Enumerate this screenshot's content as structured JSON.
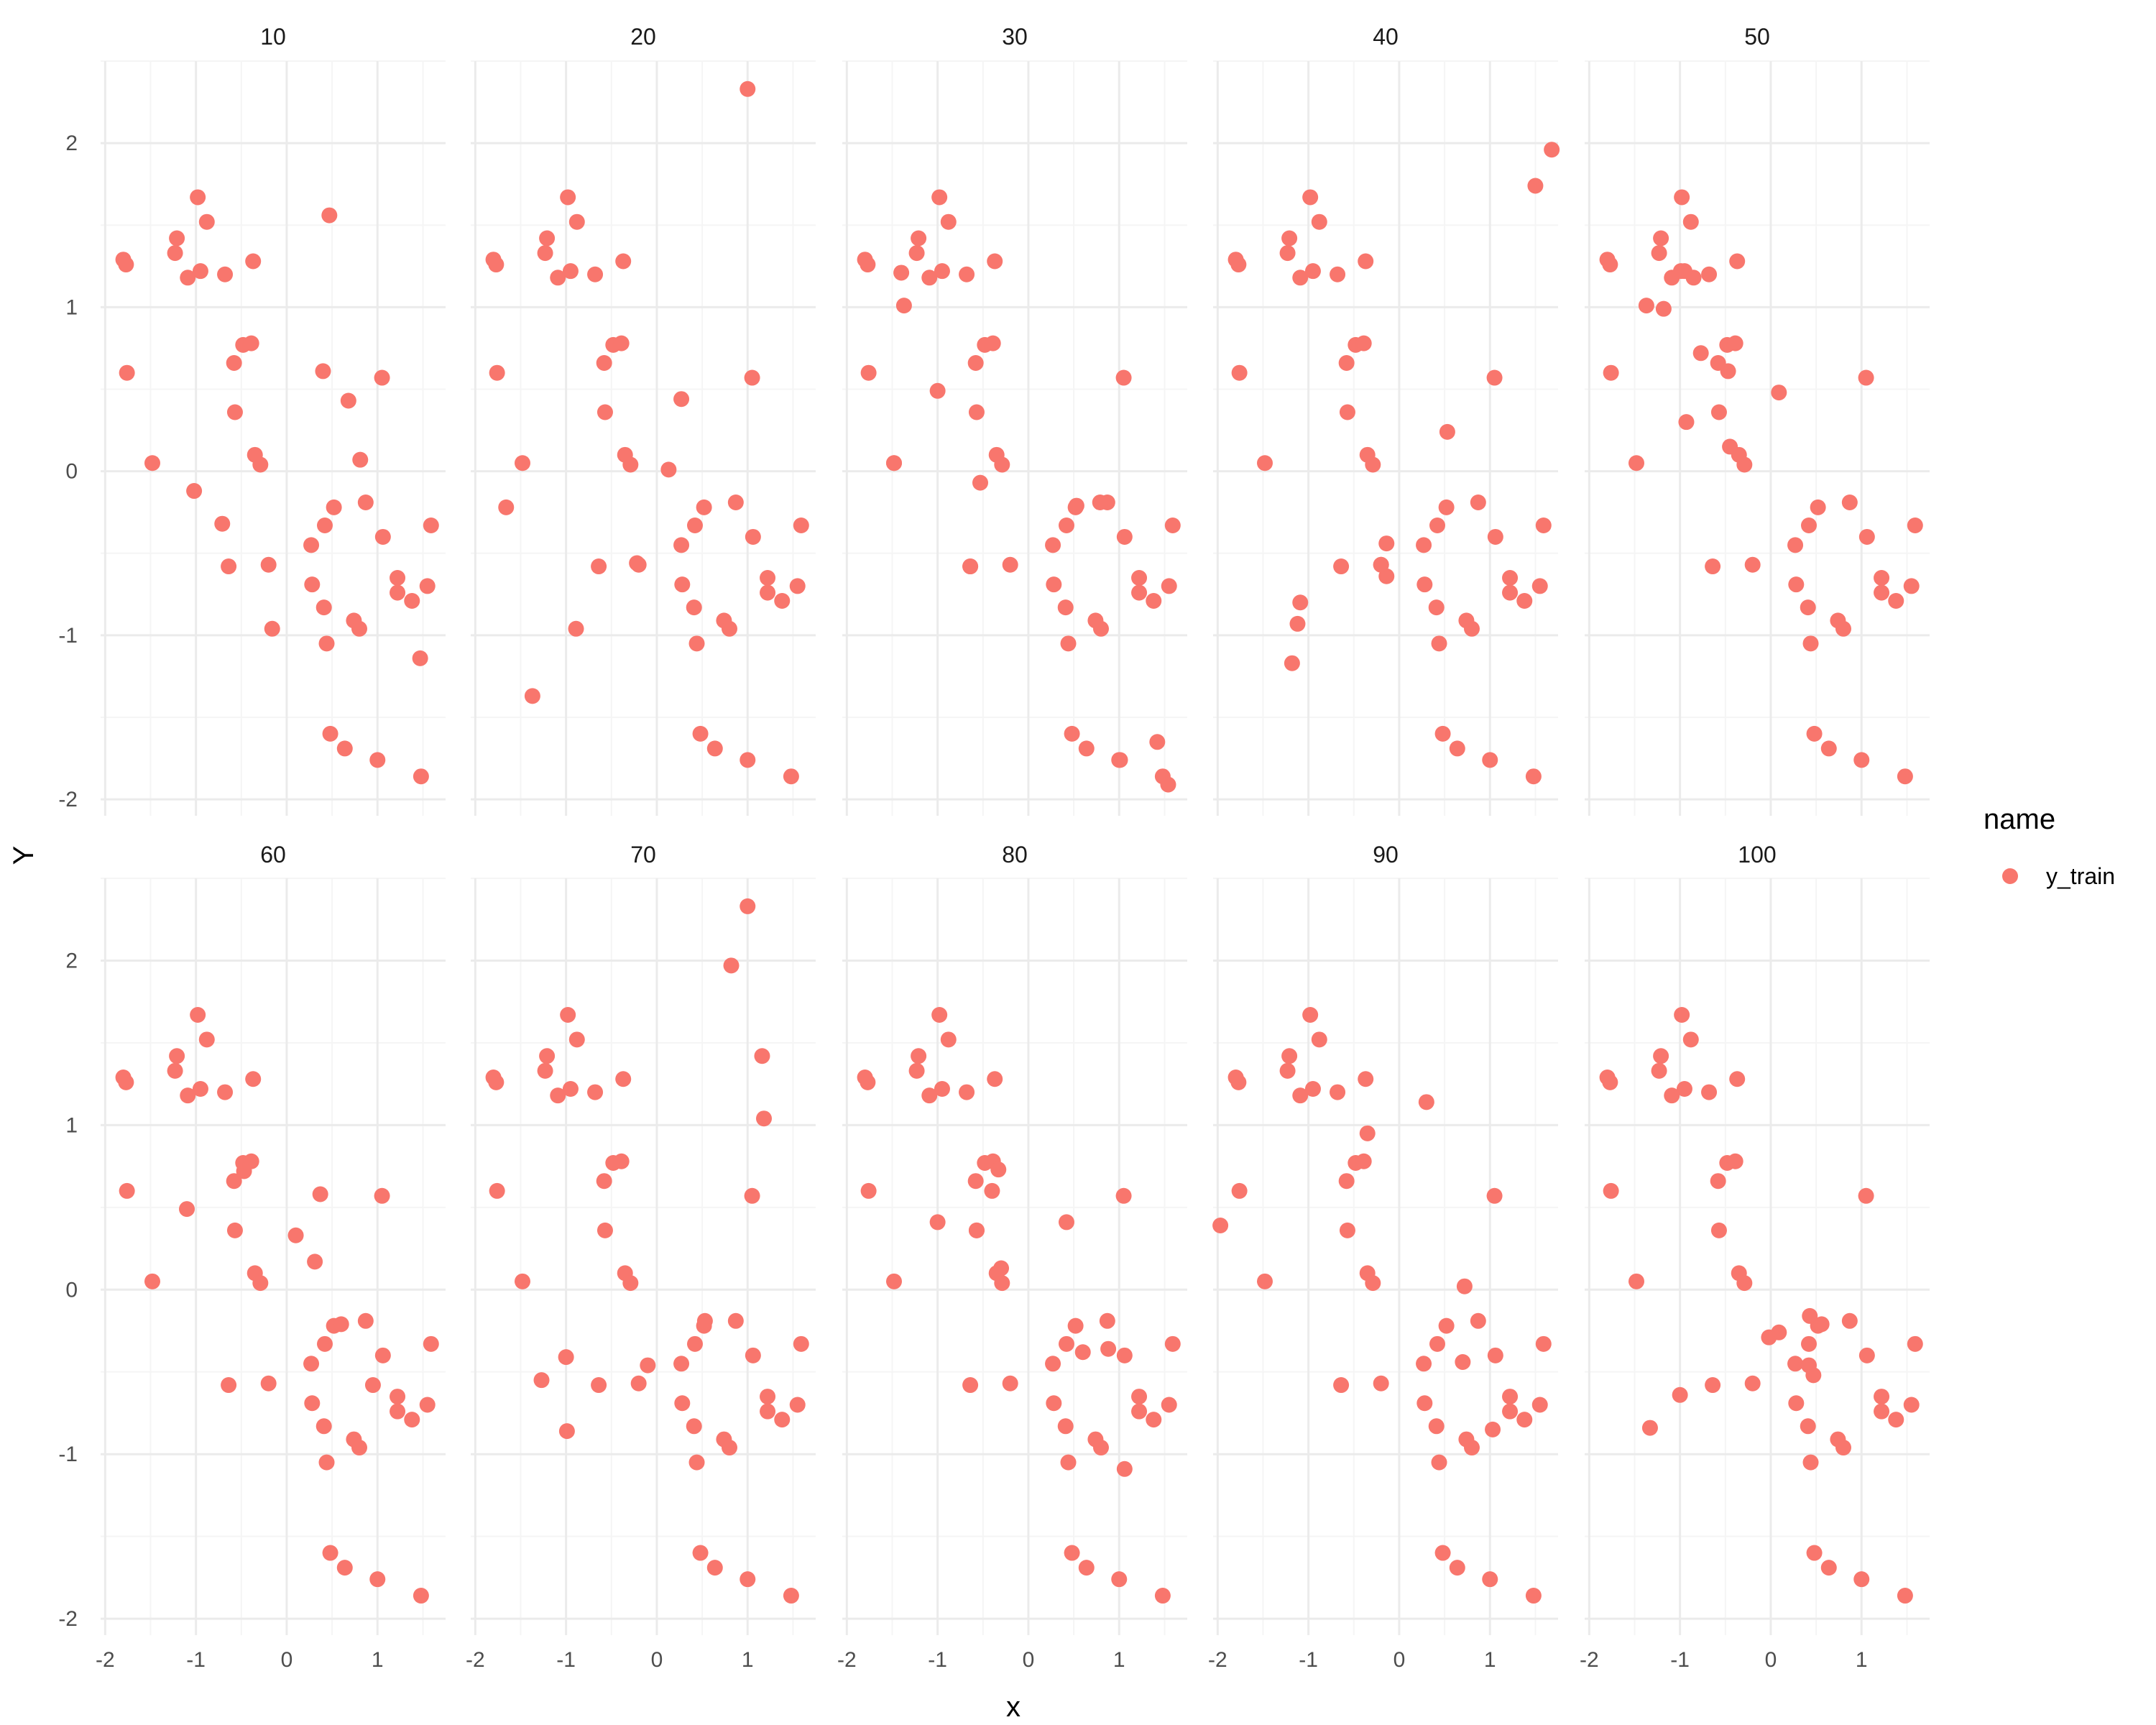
{
  "chart_data": {
    "type": "scatter",
    "xlabel": "x",
    "ylabel": "Y",
    "xlim": [
      -2.05,
      1.75
    ],
    "ylim": [
      -2.1,
      2.5
    ],
    "x_ticks": [
      -2,
      -1,
      0,
      1
    ],
    "y_ticks": [
      -2,
      -1,
      0,
      1,
      2
    ],
    "x_tick_labels": [
      "-2",
      "-1",
      "0",
      "1"
    ],
    "y_tick_labels": [
      "-2",
      "-1",
      "0",
      "1",
      "2"
    ],
    "grid": true,
    "legend": {
      "title": "name",
      "entries": [
        "y_train"
      ],
      "position": "right"
    },
    "colors": {
      "y_train": "#F8766D",
      "grid_major": "#EBEBEB",
      "grid_minor": "#F5F5F5"
    },
    "base_points": [
      [
        -1.8,
        1.29
      ],
      [
        -1.77,
        1.26
      ],
      [
        -1.76,
        0.6
      ],
      [
        -1.23,
        1.33
      ],
      [
        -1.21,
        1.42
      ],
      [
        -1.09,
        1.18
      ],
      [
        -0.98,
        1.67
      ],
      [
        -0.95,
        1.22
      ],
      [
        -0.88,
        1.52
      ],
      [
        -0.68,
        1.2
      ],
      [
        -0.37,
        1.28
      ],
      [
        -0.58,
        0.66
      ],
      [
        -0.48,
        0.77
      ],
      [
        -0.39,
        0.78
      ],
      [
        -0.57,
        0.36
      ],
      [
        -0.35,
        0.1
      ],
      [
        -0.29,
        0.04
      ],
      [
        -0.64,
        -0.58
      ],
      [
        -0.2,
        -0.57
      ],
      [
        0.27,
        -0.45
      ],
      [
        0.42,
        -0.33
      ],
      [
        0.52,
        -0.22
      ],
      [
        0.28,
        -0.69
      ],
      [
        0.41,
        -0.83
      ],
      [
        0.44,
        -1.05
      ],
      [
        0.87,
        -0.19
      ],
      [
        1.06,
        -0.4
      ],
      [
        1.22,
        -0.65
      ],
      [
        1.22,
        -0.74
      ],
      [
        1.38,
        -0.79
      ],
      [
        1.59,
        -0.33
      ],
      [
        1.55,
        -0.7
      ],
      [
        0.74,
        -0.91
      ],
      [
        0.8,
        -0.96
      ],
      [
        0.48,
        -1.6
      ],
      [
        0.64,
        -1.69
      ],
      [
        1.0,
        -1.76
      ],
      [
        1.48,
        -1.86
      ],
      [
        -1.48,
        0.05
      ],
      [
        1.05,
        0.57
      ]
    ],
    "panels": [
      {
        "label": "10",
        "extra": [
          [
            0.47,
            1.56
          ],
          [
            0.4,
            0.61
          ],
          [
            0.68,
            0.43
          ],
          [
            0.81,
            0.07
          ],
          [
            -1.02,
            -0.12
          ],
          [
            -0.16,
            -0.96
          ],
          [
            -0.71,
            -0.32
          ],
          [
            1.47,
            -1.14
          ]
        ]
      },
      {
        "label": "20",
        "extra": [
          [
            1.0,
            2.33
          ],
          [
            0.27,
            0.44
          ],
          [
            0.13,
            0.01
          ],
          [
            -0.22,
            -0.56
          ],
          [
            -1.37,
            -1.37
          ],
          [
            -1.66,
            -0.22
          ],
          [
            -0.89,
            -0.96
          ]
        ]
      },
      {
        "label": "30",
        "extra": [
          [
            -1.37,
            1.01
          ],
          [
            -0.53,
            -0.07
          ],
          [
            0.79,
            -0.19
          ],
          [
            0.53,
            -0.21
          ],
          [
            -1.0,
            0.49
          ],
          [
            -1.4,
            1.21
          ],
          [
            -0.64,
            -0.58
          ],
          [
            1.01,
            -1.76
          ],
          [
            1.54,
            -1.91
          ],
          [
            1.42,
            -1.65
          ],
          [
            -1.48,
            0.05
          ]
        ]
      },
      {
        "label": "40",
        "extra": [
          [
            1.5,
            1.74
          ],
          [
            1.68,
            1.96
          ],
          [
            -1.09,
            -0.8
          ],
          [
            -1.18,
            -1.17
          ],
          [
            -1.12,
            -0.93
          ],
          [
            0.53,
            0.24
          ],
          [
            -0.14,
            -0.44
          ],
          [
            -0.14,
            -0.64
          ],
          [
            -0.2,
            -0.57
          ]
        ]
      },
      {
        "label": "50",
        "extra": [
          [
            -1.37,
            1.01
          ],
          [
            -0.99,
            1.22
          ],
          [
            -1.18,
            0.99
          ],
          [
            -0.93,
            0.3
          ],
          [
            -0.77,
            0.72
          ],
          [
            -0.47,
            0.61
          ],
          [
            -0.45,
            0.15
          ],
          [
            0.09,
            0.48
          ],
          [
            -0.85,
            1.18
          ]
        ]
      },
      {
        "label": "60",
        "extra": [
          [
            -1.1,
            0.49
          ],
          [
            0.37,
            0.58
          ],
          [
            0.1,
            0.33
          ],
          [
            0.31,
            0.17
          ],
          [
            -0.47,
            0.72
          ],
          [
            0.6,
            -0.21
          ],
          [
            0.95,
            -0.58
          ]
        ]
      },
      {
        "label": "70",
        "extra": [
          [
            1.0,
            2.33
          ],
          [
            0.82,
            1.97
          ],
          [
            1.16,
            1.42
          ],
          [
            1.18,
            1.04
          ],
          [
            -1.27,
            -0.55
          ],
          [
            -1.0,
            -0.41
          ],
          [
            -0.99,
            -0.86
          ],
          [
            -0.1,
            -0.46
          ],
          [
            0.53,
            -0.19
          ]
        ]
      },
      {
        "label": "80",
        "extra": [
          [
            -1.0,
            0.41
          ],
          [
            -0.4,
            0.6
          ],
          [
            -0.33,
            0.73
          ],
          [
            0.42,
            0.41
          ],
          [
            0.6,
            -0.38
          ],
          [
            0.88,
            -0.36
          ],
          [
            1.06,
            -1.09
          ],
          [
            -0.3,
            0.13
          ],
          [
            -0.57,
            0.36
          ]
        ]
      },
      {
        "label": "90",
        "extra": [
          [
            -1.97,
            0.39
          ],
          [
            0.3,
            1.14
          ],
          [
            -0.35,
            0.95
          ],
          [
            0.72,
            0.02
          ],
          [
            0.7,
            -0.44
          ],
          [
            1.03,
            -0.85
          ]
        ]
      },
      {
        "label": "100",
        "extra": [
          [
            -1.33,
            -0.84
          ],
          [
            -1.0,
            -0.64
          ],
          [
            -0.02,
            -0.29
          ],
          [
            0.09,
            -0.26
          ],
          [
            0.43,
            -0.16
          ],
          [
            0.47,
            -0.52
          ],
          [
            0.42,
            -0.46
          ],
          [
            0.56,
            -0.21
          ]
        ]
      }
    ]
  }
}
